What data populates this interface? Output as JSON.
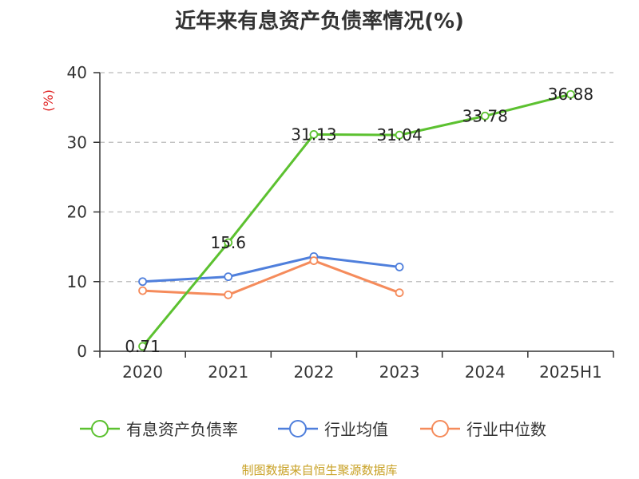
{
  "chart_data": {
    "type": "line",
    "title": "近年来有息资产负债率情况(%)",
    "ylabel": "(%)",
    "categories": [
      "2020",
      "2021",
      "2022",
      "2023",
      "2024",
      "2025H1"
    ],
    "ylim": [
      0,
      40
    ],
    "yticks": [
      0,
      10,
      20,
      30,
      40
    ],
    "grid": true,
    "legend_position": "bottom",
    "series": [
      {
        "name": "有息资产负债率",
        "color": "#5cc130",
        "values": [
          0.71,
          15.6,
          31.13,
          31.04,
          33.78,
          36.88
        ],
        "labels": [
          "0.71",
          "15.6",
          "31.13",
          "31.04",
          "33.78",
          "36.88"
        ]
      },
      {
        "name": "行业均值",
        "color": "#4f7fdc",
        "values": [
          10.0,
          10.7,
          13.6,
          12.1,
          null,
          null
        ]
      },
      {
        "name": "行业中位数",
        "color": "#f58b5b",
        "values": [
          8.7,
          8.1,
          13.0,
          8.4,
          null,
          null
        ]
      }
    ]
  },
  "footer": {
    "source": "制图数据来自恒生聚源数据库"
  }
}
